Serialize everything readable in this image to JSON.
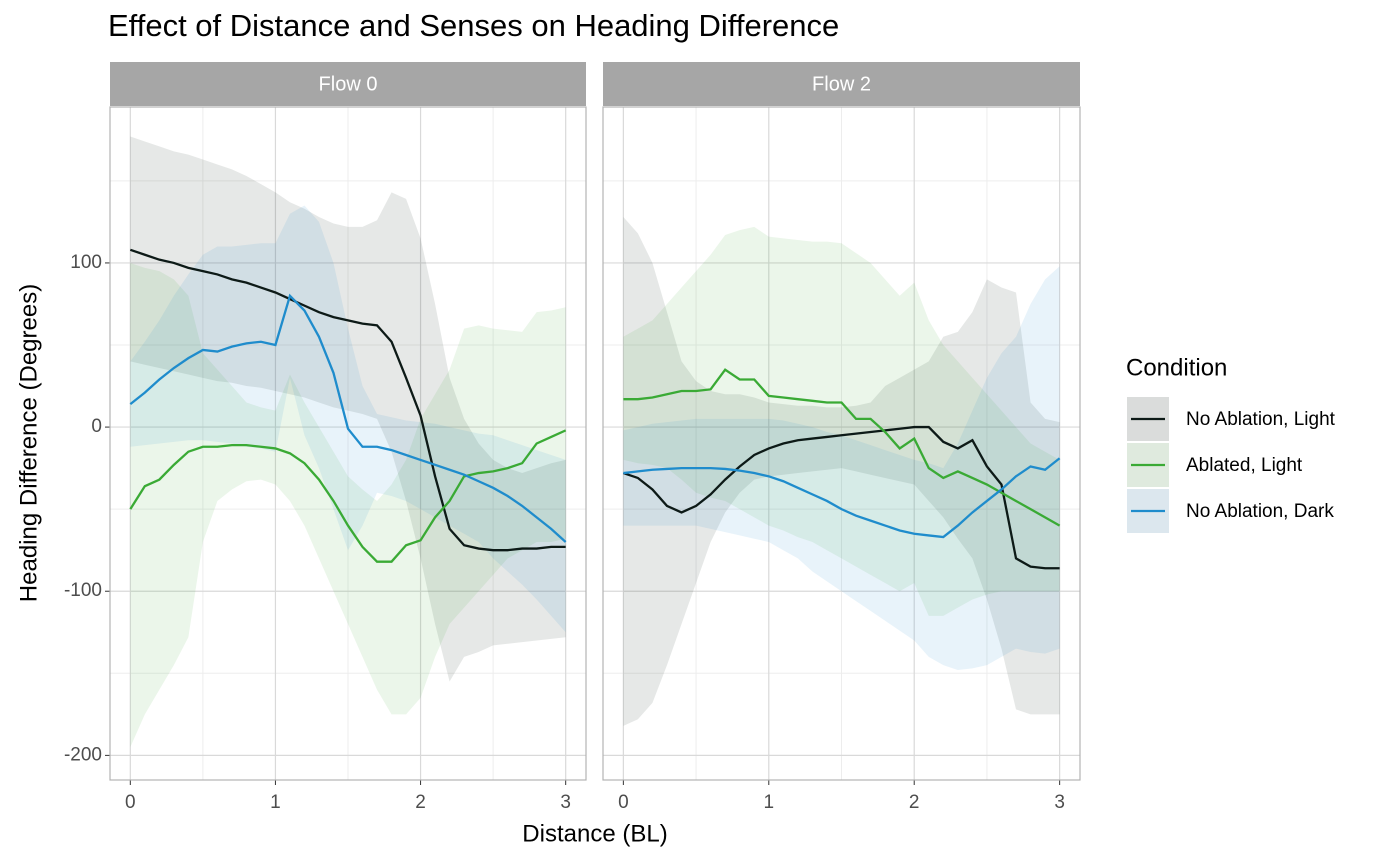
{
  "chart_data": {
    "type": "line",
    "title": "Effect of Distance and Senses on Heading Difference",
    "xlabel": "Distance (BL)",
    "ylabel": "Heading Difference (Degrees)",
    "legend_title": "Condition",
    "legend_position": "right",
    "grid": true,
    "facets": [
      "Flow 0",
      "Flow 2"
    ],
    "xlim": [
      -0.14,
      3.14
    ],
    "xticks": [
      0,
      1,
      2,
      3
    ],
    "ylim": [
      -215,
      195
    ],
    "yticks": [
      -200,
      -100,
      0,
      100
    ],
    "x": [
      0,
      0.1,
      0.2,
      0.3,
      0.4,
      0.5,
      0.6,
      0.7,
      0.8,
      0.9,
      1,
      1.1,
      1.2,
      1.3,
      1.4,
      1.5,
      1.6,
      1.7,
      1.8,
      1.9,
      2,
      2.1,
      2.2,
      2.3,
      2.4,
      2.5,
      2.6,
      2.7,
      2.8,
      2.9,
      3
    ],
    "series": [
      {
        "name": "No Ablation, Light",
        "color": "#0d1a17",
        "panels": [
          {
            "values": [
              108,
              105,
              102,
              100,
              97,
              95,
              93,
              90,
              88,
              85,
              82,
              78,
              74,
              70,
              67,
              65,
              63,
              62,
              52,
              30,
              7,
              -30,
              -62,
              -72,
              -74,
              -75,
              -75,
              -74,
              -74,
              -73,
              -73
            ],
            "upper": [
              177,
              174,
              171,
              168,
              166,
              163,
              160,
              157,
              153,
              148,
              143,
              137,
              133,
              128,
              124,
              122,
              122,
              126,
              143,
              139,
              115,
              75,
              30,
              5,
              -10,
              -20,
              -25,
              -28,
              -25,
              -22,
              -20
            ],
            "lower": [
              40,
              38,
              36,
              34,
              32,
              30,
              28,
              27,
              25,
              24,
              22,
              20,
              18,
              15,
              12,
              10,
              8,
              5,
              -15,
              -45,
              -80,
              -120,
              -155,
              -140,
              -137,
              -133,
              -132,
              -131,
              -130,
              -129,
              -128
            ]
          },
          {
            "values": [
              -28,
              -31,
              -38,
              -48,
              -52,
              -48,
              -41,
              -32,
              -24,
              -17,
              -13,
              -10,
              -8,
              -7,
              -6,
              -5,
              -4,
              -3,
              -2,
              -1,
              0,
              0,
              -9,
              -13,
              -8,
              -24,
              -35,
              -80,
              -85,
              -86,
              -86
            ],
            "upper": [
              128,
              118,
              100,
              70,
              40,
              28,
              22,
              20,
              20,
              18,
              15,
              14,
              13,
              13,
              12,
              12,
              13,
              15,
              25,
              30,
              35,
              40,
              55,
              58,
              70,
              90,
              85,
              82,
              15,
              5,
              3
            ],
            "lower": [
              -182,
              -178,
              -168,
              -145,
              -120,
              -95,
              -70,
              -52,
              -40,
              -32,
              -30,
              -29,
              -28,
              -27,
              -26,
              -25,
              -27,
              -29,
              -31,
              -33,
              -35,
              -45,
              -55,
              -68,
              -80,
              -105,
              -135,
              -172,
              -175,
              -175,
              -175
            ]
          }
        ]
      },
      {
        "name": "Ablated, Light",
        "color": "#3aaa35",
        "panels": [
          {
            "values": [
              -50,
              -36,
              -32,
              -23,
              -15,
              -12,
              -12,
              -11,
              -11,
              -12,
              -13,
              -16,
              -22,
              -32,
              -45,
              -60,
              -73,
              -82,
              -82,
              -72,
              -69,
              -55,
              -45,
              -30,
              -28,
              -27,
              -25,
              -22,
              -10,
              -6,
              -2
            ],
            "upper": [
              100,
              97,
              95,
              90,
              80,
              45,
              35,
              25,
              15,
              12,
              10,
              32,
              15,
              0,
              -15,
              -30,
              -38,
              -45,
              -35,
              -20,
              5,
              20,
              35,
              60,
              62,
              60,
              59,
              58,
              70,
              71,
              73
            ],
            "lower": [
              -195,
              -175,
              -160,
              -145,
              -128,
              -70,
              -45,
              -38,
              -33,
              -32,
              -35,
              -45,
              -60,
              -80,
              -100,
              -120,
              -140,
              -160,
              -175,
              -175,
              -165,
              -140,
              -120,
              -110,
              -100,
              -90,
              -80,
              -75,
              -70,
              -70,
              -68
            ]
          },
          {
            "values": [
              17,
              17,
              18,
              20,
              22,
              22,
              23,
              35,
              29,
              29,
              19,
              18,
              17,
              16,
              15,
              15,
              5,
              5,
              -3,
              -13,
              -7,
              -25,
              -31,
              -27,
              -31,
              -35,
              -40,
              -45,
              -50,
              -55,
              -60
            ],
            "upper": [
              55,
              60,
              65,
              75,
              85,
              95,
              105,
              117,
              120,
              122,
              116,
              115,
              114,
              113,
              113,
              112,
              106,
              100,
              90,
              80,
              88,
              65,
              50,
              40,
              30,
              20,
              10,
              0,
              -10,
              -15,
              -20
            ],
            "lower": [
              -20,
              -22,
              -23,
              -25,
              -32,
              -40,
              -43,
              -45,
              -50,
              -55,
              -60,
              -63,
              -67,
              -70,
              -75,
              -80,
              -85,
              -90,
              -95,
              -100,
              -95,
              -115,
              -115,
              -110,
              -105,
              -102,
              -100,
              -100,
              -100,
              -100,
              -100
            ]
          }
        ]
      },
      {
        "name": "No Ablation, Dark",
        "color": "#1f8ccc",
        "panels": [
          {
            "values": [
              14,
              21,
              29,
              36,
              42,
              47,
              46,
              49,
              51,
              52,
              50,
              80,
              71,
              55,
              33,
              -1,
              -12,
              -12,
              -14,
              -17,
              -20,
              -23,
              -26,
              -29,
              -33,
              -37,
              -42,
              -48,
              -55,
              -62,
              -70
            ],
            "upper": [
              40,
              52,
              65,
              80,
              93,
              105,
              110,
              110,
              111,
              112,
              112,
              130,
              135,
              125,
              100,
              60,
              25,
              8,
              6,
              4,
              3,
              2,
              0,
              -2,
              -4,
              -5,
              -8,
              -11,
              -14,
              -17,
              -20
            ],
            "lower": [
              -12,
              -11,
              -10,
              -9,
              -8,
              -8,
              -9,
              -10,
              -12,
              -13,
              -15,
              30,
              -5,
              -25,
              -50,
              -75,
              -60,
              -40,
              -42,
              -45,
              -50,
              -55,
              -60,
              -65,
              -70,
              -80,
              -88,
              -96,
              -105,
              -115,
              -125
            ]
          },
          {
            "values": [
              -28,
              -27,
              -26,
              -25.5,
              -25,
              -25,
              -25,
              -25.5,
              -26.5,
              -28,
              -30,
              -33,
              -37,
              -41,
              -45,
              -50,
              -54,
              -57,
              -60,
              -63,
              -65,
              -66,
              -67,
              -60,
              -52,
              -45,
              -38,
              -30,
              -24,
              -26,
              -19
            ],
            "upper": [
              -2,
              0,
              2,
              3,
              4,
              5,
              5,
              5,
              5,
              5,
              5,
              4,
              2,
              0,
              -3,
              -5,
              -8,
              -11,
              -14,
              -17,
              -20,
              -22,
              -25,
              -10,
              10,
              30,
              45,
              55,
              75,
              90,
              98
            ],
            "lower": [
              -60,
              -60,
              -60,
              -60,
              -60,
              -60,
              -62,
              -64,
              -66,
              -68,
              -70,
              -75,
              -80,
              -88,
              -94,
              -100,
              -106,
              -112,
              -118,
              -124,
              -130,
              -140,
              -145,
              -148,
              -147,
              -145,
              -140,
              -135,
              -137,
              -138,
              -135
            ]
          }
        ]
      }
    ]
  }
}
